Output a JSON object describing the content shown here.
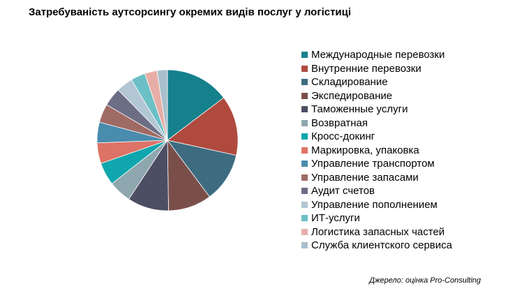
{
  "chart_data": {
    "type": "pie",
    "title": "Затребуваність аутсорсингу окремих видів послуг у логістиці",
    "legend_position": "right",
    "categories": [
      "Международные перевозки",
      "Внутренние перевозки",
      "Складирование",
      "Экспедирование",
      "Таможенные услуги",
      "Возвратная",
      "Кросс-докинг",
      "Маркировка, упаковка",
      "Управление транспортом",
      "Управление запасами",
      "Аудит счетов",
      "Управление пополнением",
      "ИТ-услуги",
      "Логистика запасных частей",
      "Служба клиентского сервиса"
    ],
    "values": [
      15.5,
      14.5,
      12,
      10.5,
      10,
      5.5,
      5.5,
      5,
      5,
      4.5,
      4.5,
      4,
      3.5,
      3,
      2.5
    ],
    "colors": [
      "#14818c",
      "#b04a3f",
      "#3d6c80",
      "#7a4f4a",
      "#4c4f63",
      "#8ea7ae",
      "#10a6ad",
      "#dd7366",
      "#4a8cae",
      "#a06a64",
      "#6b6e85",
      "#b2c6d3",
      "#6cc0c5",
      "#e7aea7",
      "#a9bfcc"
    ]
  },
  "source_note": "Джерело:  оцінка Pro-Consulting"
}
